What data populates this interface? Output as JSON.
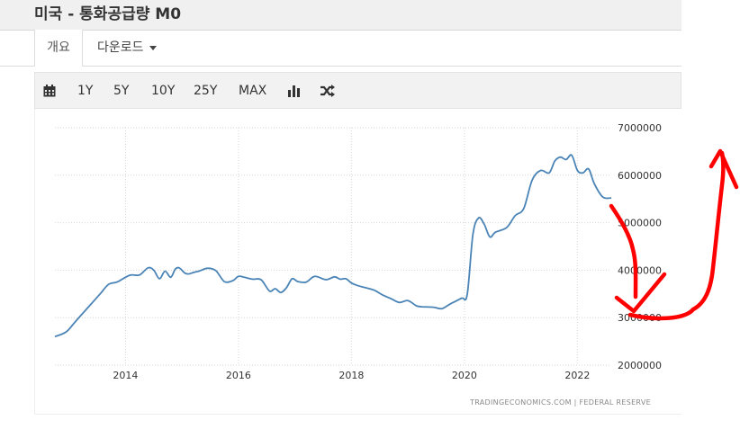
{
  "header": {
    "title": "미국 - 통화공급량 M0"
  },
  "tabs": [
    {
      "label": "개요"
    },
    {
      "label": "다운로드"
    }
  ],
  "toolbar": {
    "calendar_icon": "calendar-icon",
    "ranges": [
      "1Y",
      "5Y",
      "10Y",
      "25Y",
      "MAX"
    ],
    "bar_icon": "bar-chart-icon",
    "compare_icon": "shuffle-icon"
  },
  "colors": {
    "line": "#4a84b6",
    "annotation": "#ff0000"
  },
  "chart_data": {
    "type": "line",
    "title": "",
    "xlabel": "",
    "ylabel": "",
    "xlim": [
      2012.75,
      2022.6
    ],
    "ylim": [
      2000000,
      7000000
    ],
    "x_ticks": [
      "2014",
      "2016",
      "2018",
      "2020",
      "2022"
    ],
    "y_ticks": [
      "2000000",
      "3000000",
      "4000000",
      "5000000",
      "6000000",
      "7000000"
    ],
    "grid": "dotted",
    "legend": "none",
    "credits": "TRADINGECONOMICS.COM | FEDERAL RESERVE",
    "series": [
      {
        "name": "",
        "x": [
          2012.75,
          2012.95,
          2013.1,
          2013.25,
          2013.4,
          2013.55,
          2013.7,
          2013.85,
          2014.0,
          2014.1,
          2014.25,
          2014.4,
          2014.5,
          2014.6,
          2014.7,
          2014.8,
          2014.88,
          2014.95,
          2015.05,
          2015.12,
          2015.2,
          2015.3,
          2015.45,
          2015.6,
          2015.75,
          2015.9,
          2016.0,
          2016.1,
          2016.25,
          2016.4,
          2016.55,
          2016.65,
          2016.75,
          2016.85,
          2016.95,
          2017.05,
          2017.2,
          2017.35,
          2017.55,
          2017.7,
          2017.8,
          2017.9,
          2018.0,
          2018.1,
          2018.25,
          2018.4,
          2018.55,
          2018.7,
          2018.85,
          2019.0,
          2019.15,
          2019.25,
          2019.45,
          2019.6,
          2019.75,
          2019.95,
          2020.05,
          2020.15,
          2020.25,
          2020.35,
          2020.45,
          2020.55,
          2020.75,
          2020.9,
          2021.05,
          2021.2,
          2021.35,
          2021.5,
          2021.6,
          2021.7,
          2021.8,
          2021.9,
          2022.0,
          2022.1,
          2022.2,
          2022.3,
          2022.45,
          2022.6
        ],
        "values": [
          2600000,
          2700000,
          2900000,
          3100000,
          3300000,
          3500000,
          3700000,
          3750000,
          3850000,
          3900000,
          3900000,
          4050000,
          4000000,
          3820000,
          3980000,
          3850000,
          4020000,
          4050000,
          3940000,
          3920000,
          3950000,
          3980000,
          4040000,
          3990000,
          3760000,
          3780000,
          3870000,
          3850000,
          3810000,
          3800000,
          3560000,
          3610000,
          3530000,
          3630000,
          3820000,
          3760000,
          3750000,
          3870000,
          3800000,
          3860000,
          3810000,
          3820000,
          3730000,
          3680000,
          3630000,
          3580000,
          3480000,
          3400000,
          3320000,
          3360000,
          3250000,
          3230000,
          3220000,
          3190000,
          3290000,
          3410000,
          3490000,
          4750000,
          5100000,
          4970000,
          4700000,
          4800000,
          4900000,
          5150000,
          5300000,
          5900000,
          6100000,
          6050000,
          6300000,
          6380000,
          6330000,
          6420000,
          6100000,
          6050000,
          6130000,
          5820000,
          5540000,
          5520000
        ]
      }
    ]
  }
}
